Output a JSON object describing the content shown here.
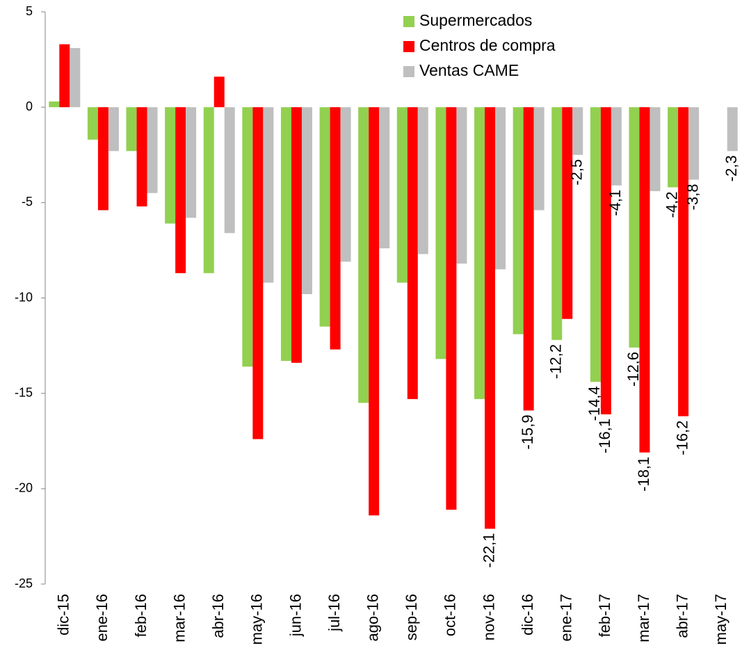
{
  "chart_data": {
    "type": "bar",
    "categories": [
      "dic-15",
      "ene-16",
      "feb-16",
      "mar-16",
      "abr-16",
      "may-16",
      "jun-16",
      "jul-16",
      "ago-16",
      "sep-16",
      "oct-16",
      "nov-16",
      "dic-16",
      "ene-17",
      "feb-17",
      "mar-17",
      "abr-17",
      "may-17"
    ],
    "series": [
      {
        "name": "Supermercados",
        "color": "#92d050",
        "values": [
          0.3,
          -1.7,
          -2.3,
          -6.1,
          -8.7,
          -13.6,
          -13.3,
          -11.5,
          -15.5,
          -9.2,
          -13.2,
          -15.3,
          -11.9,
          -12.2,
          -14.4,
          -12.6,
          -4.2,
          null
        ],
        "value_labels": [
          null,
          null,
          null,
          null,
          null,
          null,
          null,
          null,
          null,
          null,
          null,
          null,
          null,
          "-12,2",
          "-14,4",
          "-12,6",
          "-4,2",
          null
        ]
      },
      {
        "name": "Centros de compra",
        "color": "#ff0000",
        "values": [
          3.3,
          -5.4,
          -5.2,
          -8.7,
          1.6,
          -17.4,
          -13.4,
          -12.7,
          -21.4,
          -15.3,
          -21.1,
          -22.1,
          -15.9,
          -11.1,
          -16.1,
          -18.1,
          -16.2,
          null
        ],
        "value_labels": [
          null,
          null,
          null,
          null,
          null,
          null,
          null,
          null,
          null,
          null,
          null,
          "-22,1",
          "-15,9",
          null,
          "-16,1",
          "-18,1",
          "-16,2",
          null
        ]
      },
      {
        "name": "Ventas CAME",
        "color": "#bfbfbf",
        "values": [
          3.1,
          -2.3,
          -4.5,
          -5.8,
          -6.6,
          -9.2,
          -9.8,
          -8.1,
          -7.4,
          -7.7,
          -8.2,
          -8.5,
          -5.4,
          -2.5,
          -4.1,
          -4.4,
          -3.8,
          -2.3
        ],
        "value_labels": [
          null,
          null,
          null,
          null,
          null,
          null,
          null,
          null,
          null,
          null,
          null,
          null,
          null,
          "-2,5",
          "-4,1",
          null,
          "-3,8",
          "-2,3"
        ]
      }
    ],
    "ylim": [
      -25,
      5
    ],
    "yticks": [
      -25,
      -20,
      -15,
      -10,
      -5,
      0,
      5
    ],
    "grid": false,
    "legend": "top-right"
  }
}
